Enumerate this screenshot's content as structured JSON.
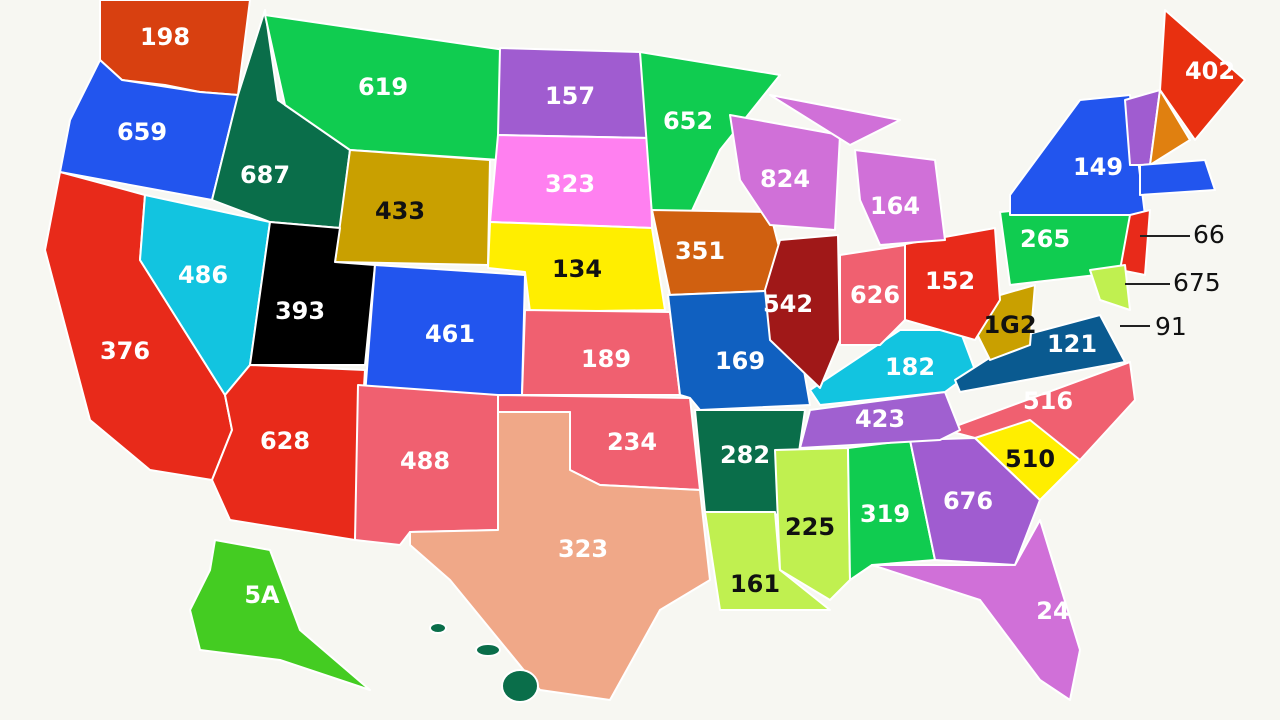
{
  "states": [
    {
      "label": "198"
    },
    {
      "label": "659"
    },
    {
      "label": "376"
    },
    {
      "label": "687"
    },
    {
      "label": "486"
    },
    {
      "label": "619"
    },
    {
      "label": "433"
    },
    {
      "label": "393"
    },
    {
      "label": "461"
    },
    {
      "label": "628"
    },
    {
      "label": "488"
    },
    {
      "label": "157"
    },
    {
      "label": "323"
    },
    {
      "label": "134"
    },
    {
      "label": "189"
    },
    {
      "label": "234"
    },
    {
      "label": "323"
    },
    {
      "label": "652"
    },
    {
      "label": "351"
    },
    {
      "label": "169"
    },
    {
      "label": "282"
    },
    {
      "label": "161"
    },
    {
      "label": "824"
    },
    {
      "label": "542"
    },
    {
      "label": "164"
    },
    {
      "label": "626"
    },
    {
      "label": "152"
    },
    {
      "label": "182"
    },
    {
      "label": "423"
    },
    {
      "label": "225"
    },
    {
      "label": "319"
    },
    {
      "label": "676"
    },
    {
      "label": "24"
    },
    {
      "label": "510"
    },
    {
      "label": "516"
    },
    {
      "label": "121"
    },
    {
      "label": "1G2"
    },
    {
      "label": "265"
    },
    {
      "label": "149"
    },
    {
      "label": "402"
    },
    {
      "label": "5A"
    }
  ],
  "callouts": [
    {
      "label": "66"
    },
    {
      "label": "675"
    },
    {
      "label": "91"
    }
  ]
}
